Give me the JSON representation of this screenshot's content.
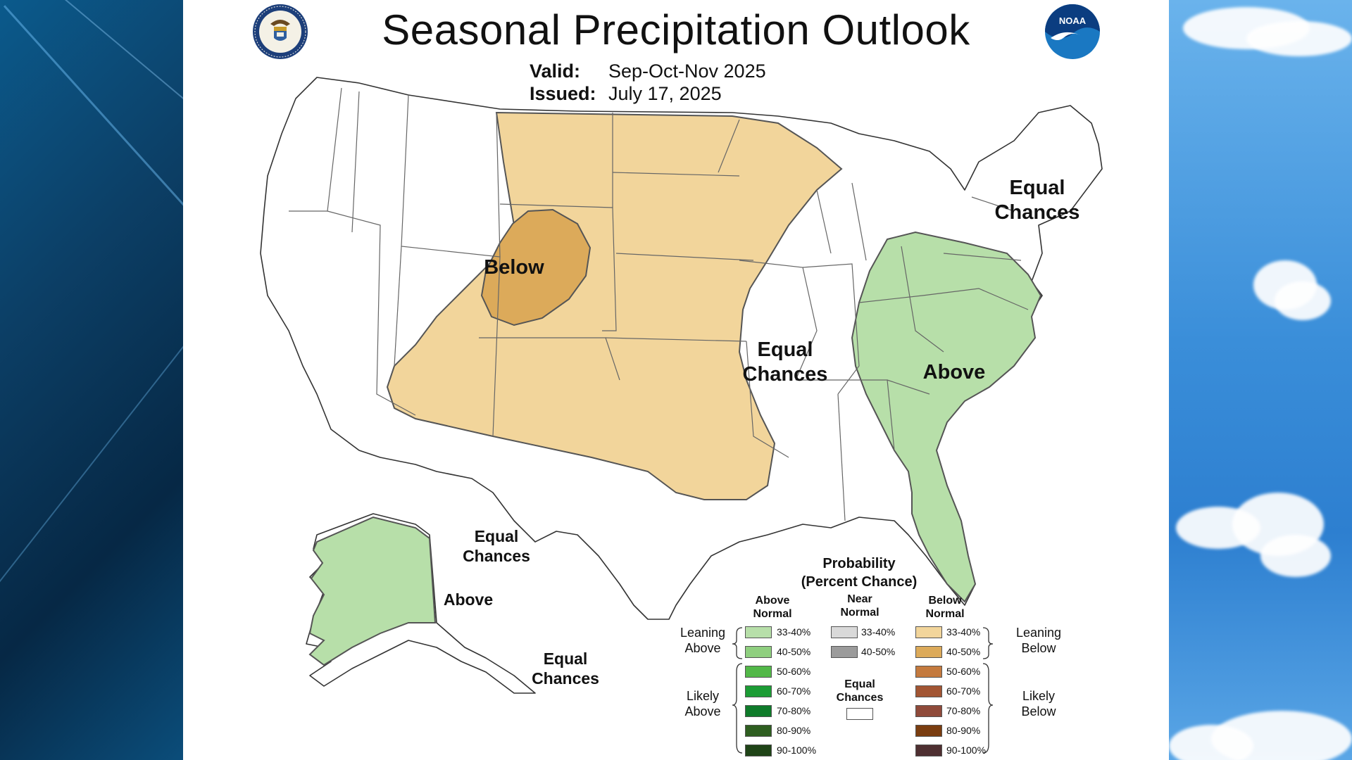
{
  "header": {
    "title": "Seasonal Precipitation Outlook",
    "valid_label": "Valid:",
    "valid_value": "Sep-Oct-Nov 2025",
    "issued_label": "Issued:",
    "issued_value": "July 17, 2025"
  },
  "logos": {
    "left": "department-of-commerce-seal",
    "right": "noaa-logo",
    "right_text": "NOAA"
  },
  "map_labels": {
    "below_core": "Below",
    "ec_northeast": [
      "Equal",
      "Chances"
    ],
    "ec_central": [
      "Equal",
      "Chances"
    ],
    "above_east": "Above",
    "ec_alaska_north": [
      "Equal",
      "Chances"
    ],
    "above_alaska": "Above",
    "ec_alaska_south": [
      "Equal",
      "Chances"
    ]
  },
  "colors": {
    "above_33_40": "#b7dfa9",
    "above_40_50": "#8fcf7f",
    "above_50_60": "#52b848",
    "above_60_70": "#1c9c35",
    "above_70_80": "#0f7b2a",
    "above_80_90": "#2e5e20",
    "above_90_100": "#1f4417",
    "near_33_40": "#d9d9d9",
    "near_40_50": "#9b9b9b",
    "below_33_40": "#f2d59b",
    "below_40_50": "#dcaa5a",
    "below_50_60": "#c47a3e",
    "below_60_70": "#a25533",
    "below_70_80": "#8f4a3a",
    "below_80_90": "#7a3d10",
    "below_90_100": "#4e2f31",
    "equal": "#ffffff"
  },
  "legend": {
    "title_1": "Probability",
    "title_2": "(Percent Chance)",
    "col_above": [
      "Above",
      "Normal"
    ],
    "col_near": [
      "Near",
      "Normal"
    ],
    "col_below": [
      "Below",
      "Normal"
    ],
    "leaning_above": [
      "Leaning",
      "Above"
    ],
    "likely_above": [
      "Likely",
      "Above"
    ],
    "leaning_below": [
      "Leaning",
      "Below"
    ],
    "likely_below": [
      "Likely",
      "Below"
    ],
    "equal_chances": [
      "Equal",
      "Chances"
    ],
    "ranges": [
      "33-40%",
      "40-50%",
      "50-60%",
      "60-70%",
      "70-80%",
      "80-90%",
      "90-100%"
    ],
    "near_ranges": [
      "33-40%",
      "40-50%"
    ]
  }
}
